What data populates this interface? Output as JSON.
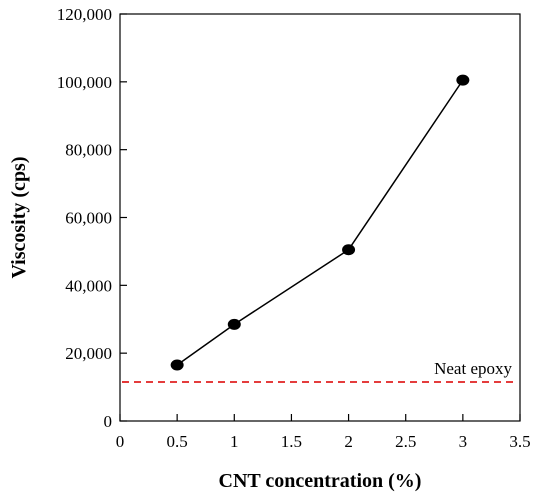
{
  "chart_data": {
    "type": "line",
    "xlabel": "CNT concentration (%)",
    "ylabel": "Viscosity (cps)",
    "xlim": [
      0,
      3.5
    ],
    "ylim": [
      0,
      120000
    ],
    "x_ticks": [
      0,
      0.5,
      1,
      1.5,
      2,
      2.5,
      3,
      3.5
    ],
    "x_tick_labels": [
      "0",
      "0.5",
      "1",
      "1.5",
      "2",
      "2.5",
      "3",
      "3.5"
    ],
    "y_ticks": [
      0,
      20000,
      40000,
      60000,
      80000,
      100000,
      120000
    ],
    "y_tick_labels": [
      "0",
      "20,000",
      "40,000",
      "60,000",
      "80,000",
      "100,000",
      "120,000"
    ],
    "grid": false,
    "series": [
      {
        "x": [
          0.5,
          1,
          2,
          3
        ],
        "y": [
          16500,
          28500,
          50500,
          100500
        ],
        "color": "#000000",
        "marker": "circle"
      }
    ],
    "reference_lines": [
      {
        "label": "Neat epoxy",
        "y": 11500,
        "color": "#e02020",
        "style": "dashed"
      }
    ]
  }
}
